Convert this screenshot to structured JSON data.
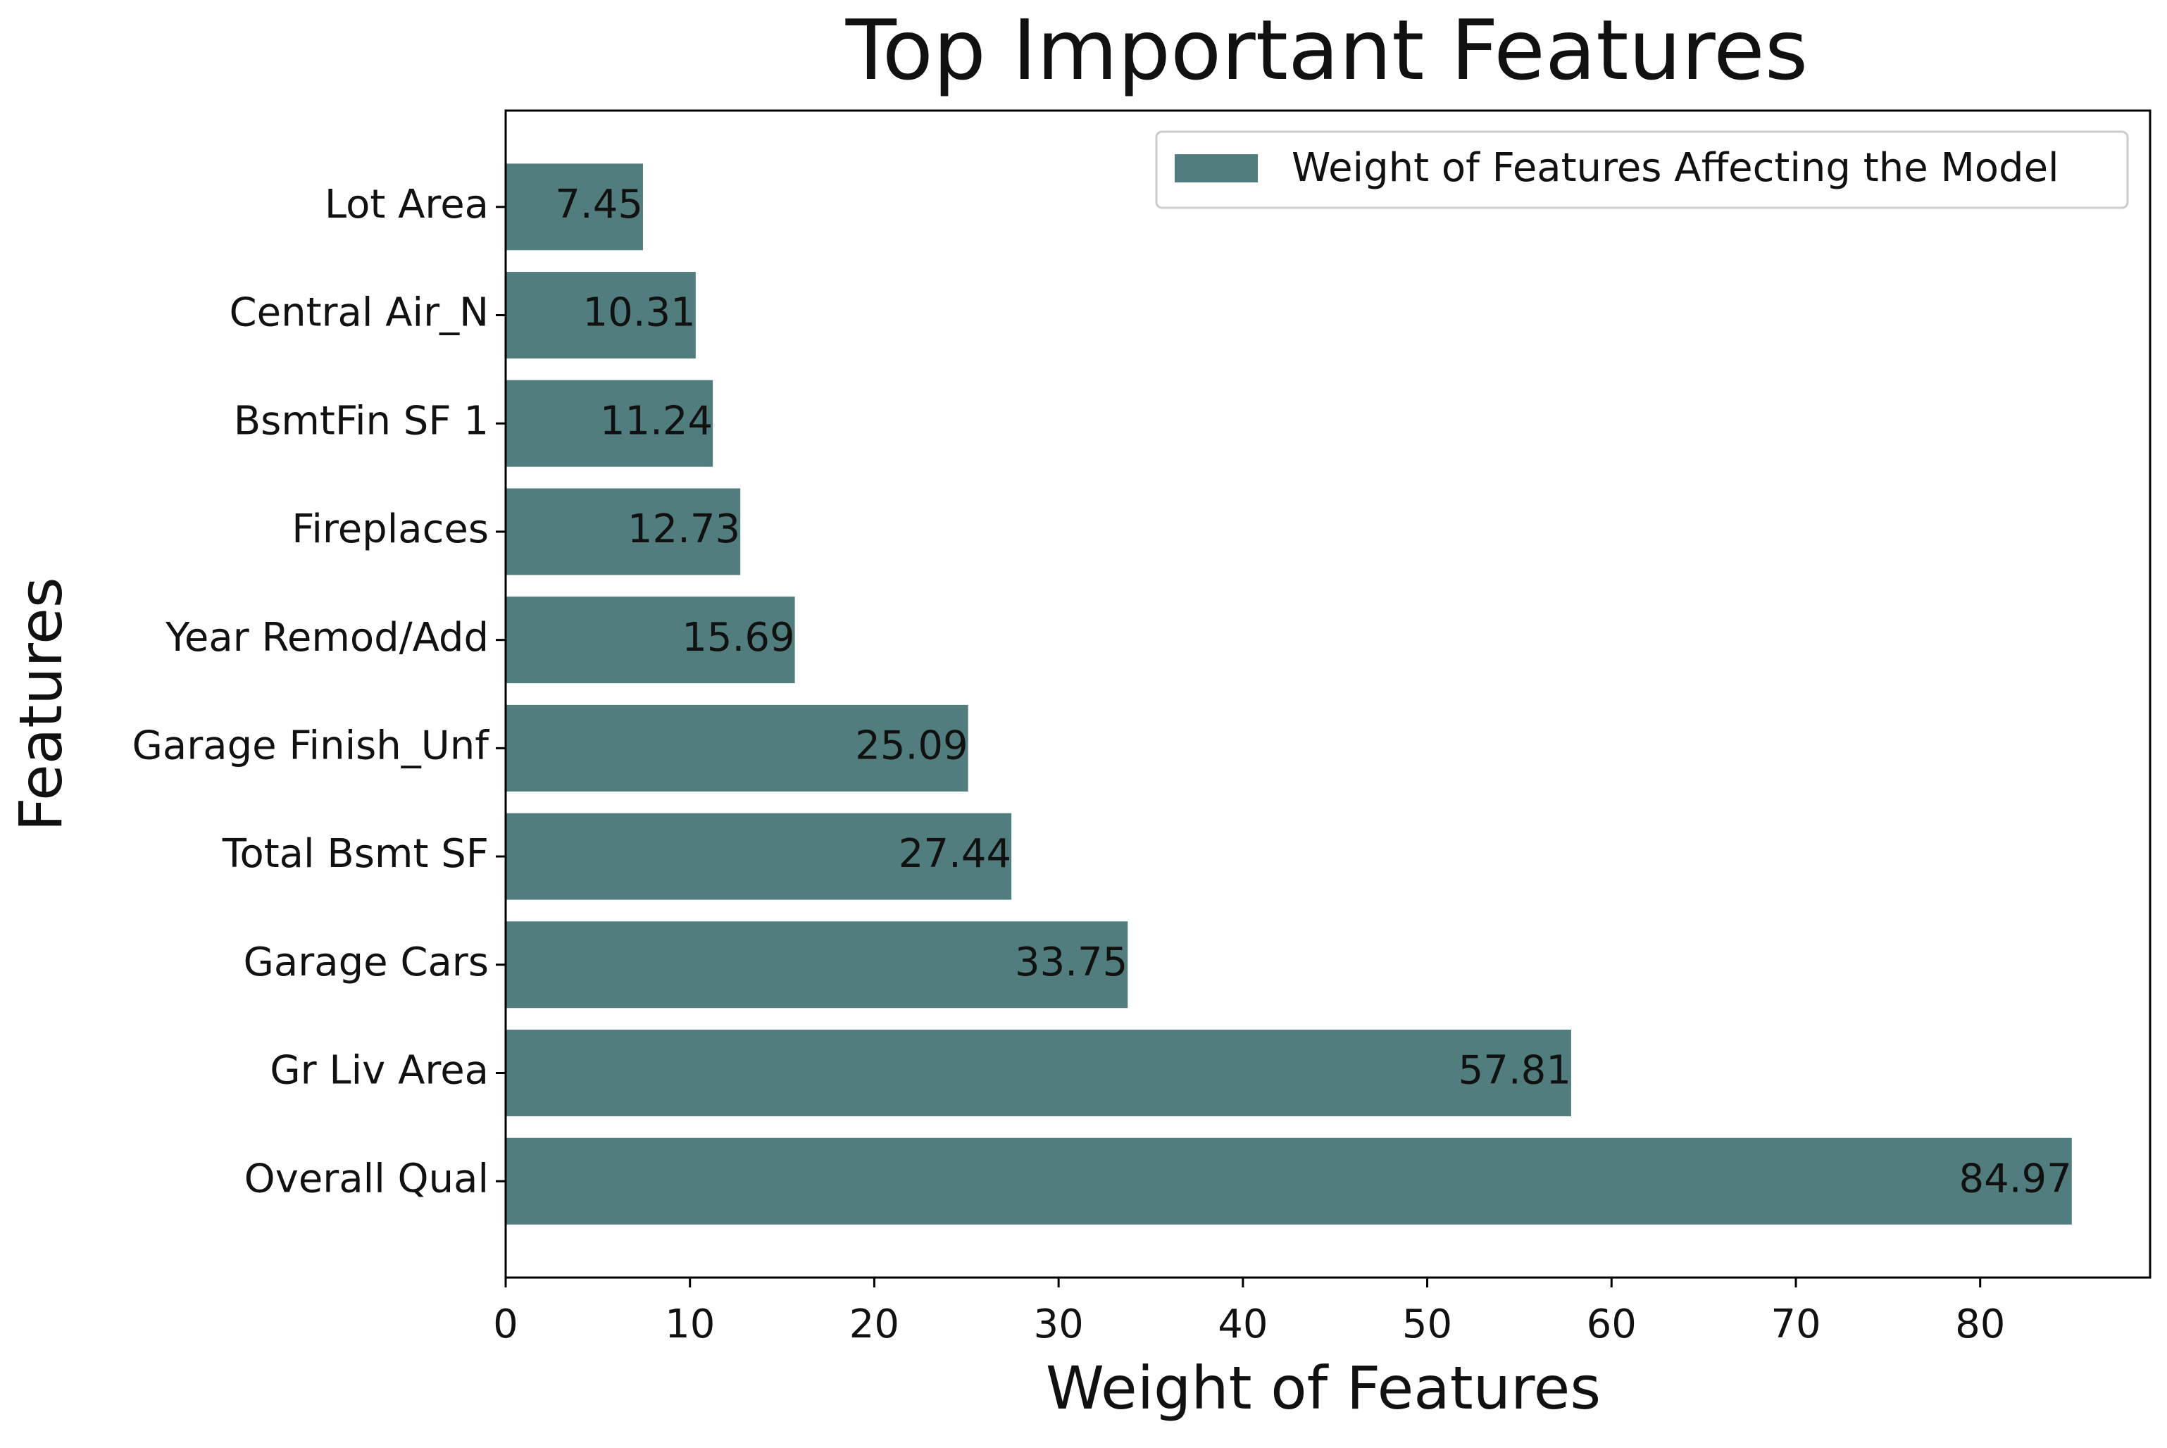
{
  "chart_data": {
    "type": "barh",
    "title": "Top Important Features",
    "x_label": "Weight of Features",
    "y_label": "Features",
    "categories": [
      "Overall Qual",
      "Gr Liv Area",
      "Garage Cars",
      "Total Bsmt SF",
      "Garage Finish_Unf",
      "Year Remod/Add",
      "Fireplaces",
      "BsmtFin SF 1",
      "Central Air_N",
      "Lot Area"
    ],
    "series": [
      {
        "name": "Weight of Features Affecting the Model",
        "color": "#517d7e",
        "values": [
          84.97,
          57.81,
          33.75,
          27.44,
          25.09,
          15.69,
          12.73,
          11.24,
          10.31,
          7.45
        ]
      }
    ],
    "xlim": [
      0,
      89.22
    ],
    "xticks": [
      0,
      10,
      20,
      30,
      40,
      50,
      60,
      70,
      80
    ],
    "grid": false,
    "legend": "upper right"
  }
}
